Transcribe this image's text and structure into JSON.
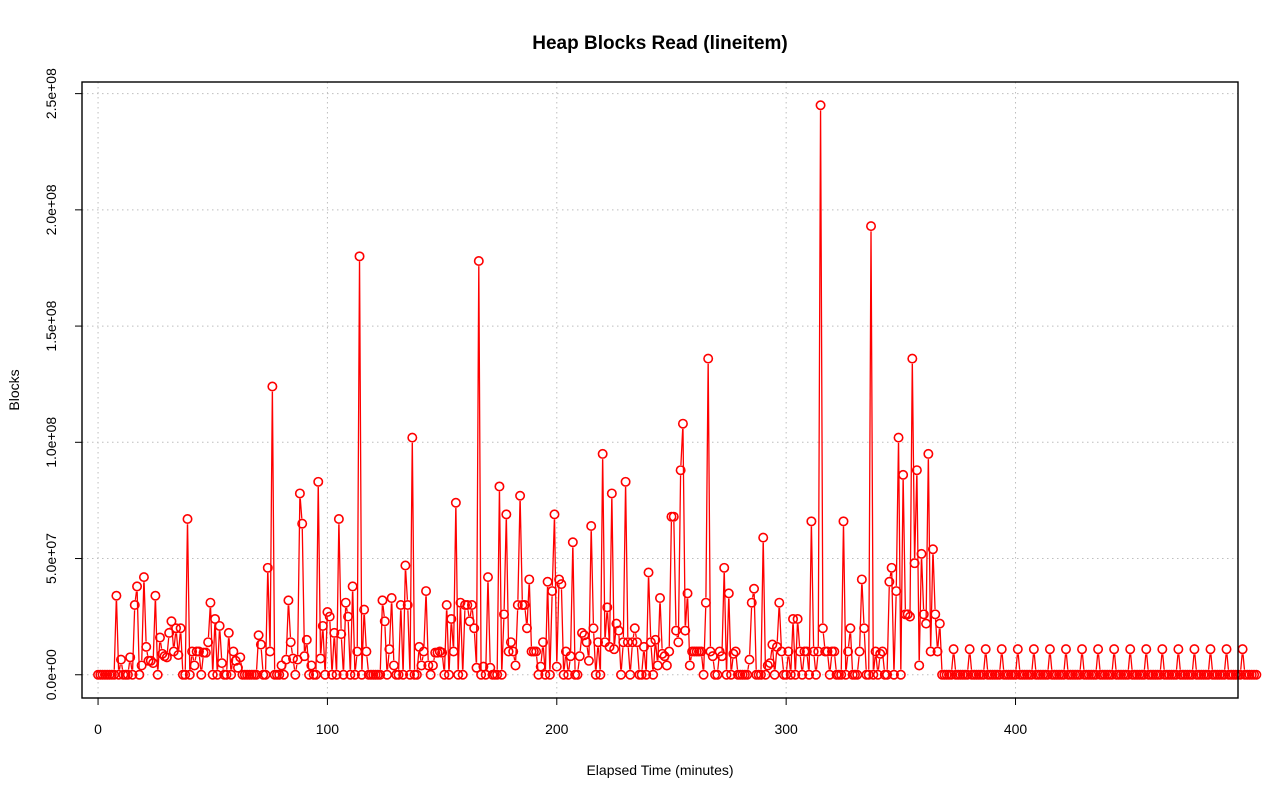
{
  "chart_data": {
    "type": "line",
    "title": "Heap Blocks Read (lineitem)",
    "xlabel": "Elapsed Time (minutes)",
    "ylabel": "Blocks",
    "xlim": [
      -7,
      497
    ],
    "ylim": [
      -10000000,
      255000000
    ],
    "x_ticks": [
      0,
      100,
      200,
      300,
      400
    ],
    "x_tick_labels": [
      "0",
      "100",
      "200",
      "300",
      "400"
    ],
    "y_ticks": [
      0,
      50000000,
      100000000,
      150000000,
      200000000,
      250000000
    ],
    "y_tick_labels": [
      "0.0e+00",
      "5.0e+07",
      "1.0e+08",
      "1.5e+08",
      "2.0e+08",
      "2.5e+08"
    ],
    "grid": true,
    "line_style": "both",
    "colors": {
      "series": "#ff0000",
      "grid": "#bebebe",
      "axis": "#000000"
    },
    "series": [
      {
        "x_start": 0,
        "x_step": 1,
        "values": [
          0,
          0,
          0,
          0,
          0,
          0,
          0,
          0,
          34000000,
          0,
          6500000,
          0,
          0,
          0,
          7500000,
          0,
          30000000,
          38000000,
          0,
          4000000,
          42000000,
          12000000,
          6000000,
          6000000,
          5000000,
          34000000,
          0,
          16000000,
          9000000,
          8000000,
          7500000,
          18000000,
          23000000,
          10000000,
          20000000,
          8500000,
          20000000,
          0,
          0,
          67000000,
          0,
          10000000,
          4000000,
          10000000,
          10000000,
          0,
          9500000,
          9500000,
          14000000,
          31000000,
          0,
          24000000,
          0,
          21000000,
          5000000,
          0,
          0,
          18000000,
          0,
          10000000,
          6000000,
          3000000,
          7500000,
          0,
          0,
          0,
          0,
          0,
          0,
          0,
          17000000,
          13000000,
          0,
          0,
          46000000,
          10000000,
          124000000,
          0,
          0,
          0,
          4000000,
          0,
          6500000,
          32000000,
          14000000,
          7000000,
          0,
          6500000,
          78000000,
          65000000,
          8000000,
          15000000,
          0,
          4000000,
          0,
          0,
          83000000,
          7000000,
          21000000,
          0,
          27000000,
          25000000,
          0,
          18000000,
          0,
          67000000,
          17500000,
          0,
          31000000,
          25000000,
          0,
          38000000,
          0,
          10000000,
          180000000,
          0,
          28000000,
          10000000,
          0,
          0,
          0,
          0,
          0,
          0,
          32000000,
          23000000,
          0,
          11000000,
          33000000,
          4000000,
          0,
          0,
          30000000,
          0,
          47000000,
          30000000,
          0,
          102000000,
          0,
          0,
          12000000,
          4000000,
          10000000,
          36000000,
          4000000,
          0,
          4000000,
          9500000,
          9500000,
          10000000,
          9500000,
          0,
          30000000,
          0,
          24000000,
          10000000,
          74000000,
          0,
          31000000,
          0,
          30000000,
          30000000,
          23000000,
          30000000,
          20000000,
          3000000,
          178000000,
          0,
          3500000,
          0,
          42000000,
          3000000,
          0,
          0,
          0,
          81000000,
          0,
          26000000,
          69000000,
          10000000,
          14000000,
          10000000,
          4000000,
          30000000,
          77000000,
          30000000,
          30000000,
          20000000,
          41000000,
          10000000,
          10000000,
          10000000,
          0,
          3500000,
          14000000,
          0,
          40000000,
          0,
          36000000,
          69000000,
          3500000,
          41000000,
          39000000,
          0,
          10000000,
          0,
          8000000,
          57000000,
          0,
          0,
          8000000,
          18000000,
          17000000,
          14000000,
          6000000,
          64000000,
          20000000,
          0,
          14000000,
          0,
          95000000,
          14000000,
          29000000,
          12000000,
          78000000,
          11000000,
          22000000,
          19000000,
          0,
          14000000,
          83000000,
          14000000,
          0,
          14000000,
          20000000,
          14000000,
          0,
          0,
          12000000,
          0,
          44000000,
          14000000,
          0,
          15000000,
          4000000,
          33000000,
          9000000,
          8000000,
          4000000,
          10000000,
          68000000,
          68000000,
          19000000,
          14000000,
          88000000,
          108000000,
          19000000,
          35000000,
          4000000,
          10000000,
          10000000,
          10000000,
          10000000,
          10000000,
          0,
          31000000,
          136000000,
          10000000,
          8000000,
          0,
          0,
          10000000,
          8000000,
          46000000,
          0,
          35000000,
          0,
          9000000,
          10000000,
          0,
          0,
          0,
          0,
          0,
          6500000,
          31000000,
          37000000,
          0,
          0,
          0,
          59000000,
          0,
          4000000,
          5000000,
          13000000,
          0,
          12000000,
          31000000,
          10000000,
          0,
          0,
          10000000,
          0,
          24000000,
          0,
          24000000,
          10000000,
          0,
          10000000,
          10000000,
          0,
          66000000,
          10000000,
          0,
          10000000,
          245000000,
          20000000,
          10000000,
          10000000,
          0,
          10000000,
          10000000,
          0,
          0,
          0,
          66000000,
          0,
          10000000,
          20000000,
          0,
          0,
          0,
          10000000,
          41000000,
          20000000,
          0,
          0,
          193000000,
          0,
          10000000,
          0,
          9000000,
          10000000,
          0,
          0,
          40000000,
          46000000,
          0,
          36000000,
          102000000,
          0,
          86000000,
          26000000,
          26000000,
          25000000,
          136000000,
          48000000,
          88000000,
          4000000,
          52000000,
          26000000,
          22000000,
          95000000,
          10000000,
          54000000,
          26000000,
          10000000,
          22000000,
          0,
          0,
          0,
          0,
          0,
          11000000,
          0,
          0,
          0,
          0,
          0,
          0,
          11000000,
          0,
          0,
          0,
          0,
          0,
          0,
          11000000,
          0,
          0,
          0,
          0,
          0,
          0,
          11000000,
          0,
          0,
          0,
          0,
          0,
          0,
          11000000,
          0,
          0,
          0,
          0,
          0,
          0,
          11000000,
          0,
          0,
          0,
          0,
          0,
          0,
          11000000,
          0,
          0,
          0,
          0,
          0,
          0,
          11000000,
          0,
          0,
          0,
          0,
          0,
          0,
          11000000,
          0,
          0,
          0,
          0,
          0,
          0,
          11000000,
          0,
          0,
          0,
          0,
          0,
          0,
          11000000,
          0,
          0,
          0,
          0,
          0,
          0,
          11000000,
          0,
          0,
          0,
          0,
          0,
          0,
          11000000,
          0,
          0,
          0,
          0,
          0,
          0,
          11000000,
          0,
          0,
          0,
          0,
          0,
          0,
          11000000,
          0,
          0,
          0,
          0,
          0,
          0,
          11000000,
          0,
          0,
          0,
          0,
          0,
          0,
          11000000,
          0,
          0,
          0,
          0,
          0,
          0,
          11000000,
          0,
          0,
          0,
          0,
          0,
          0,
          11000000,
          0,
          0,
          0,
          0,
          0,
          0
        ]
      }
    ]
  }
}
